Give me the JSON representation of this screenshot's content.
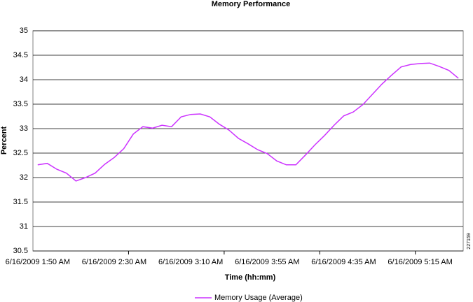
{
  "chart_data": {
    "type": "line",
    "title": "Memory Performance",
    "x_label": "Time (hh:mm)",
    "y_label": "Percent",
    "annotation": "227159",
    "categories": [
      "6/16/2009 1:50 AM",
      null,
      null,
      null,
      null,
      null,
      null,
      null,
      "6/16/2009 2:30 AM",
      null,
      null,
      null,
      null,
      null,
      null,
      null,
      "6/16/2009 3:10 AM",
      null,
      null,
      null,
      null,
      null,
      null,
      null,
      "6/16/2009 3:55 AM",
      null,
      null,
      null,
      null,
      null,
      null,
      null,
      "6/16/2009 4:35 AM",
      null,
      null,
      null,
      null,
      null,
      null,
      null,
      "6/16/2009 5:15 AM",
      null,
      null,
      null,
      null
    ],
    "series": [
      {
        "name": "Memory Usage (Average)",
        "color": "#cc33ff",
        "values": [
          32.26,
          32.29,
          32.17,
          32.09,
          31.93,
          32.0,
          32.09,
          32.27,
          32.41,
          32.59,
          32.89,
          33.04,
          33.01,
          33.07,
          33.04,
          33.24,
          33.29,
          33.3,
          33.24,
          33.09,
          32.97,
          32.8,
          32.69,
          32.57,
          32.49,
          32.34,
          32.26,
          32.26,
          32.46,
          32.67,
          32.86,
          33.07,
          33.26,
          33.34,
          33.49,
          33.7,
          33.91,
          34.09,
          34.26,
          34.31,
          34.33,
          34.34,
          34.27,
          34.19,
          34.03
        ]
      }
    ],
    "ylim": [
      30.5,
      35
    ],
    "yticks": [
      30.5,
      31,
      31.5,
      32,
      32.5,
      33,
      33.5,
      34,
      34.5,
      35
    ],
    "grid": true,
    "legend": "bottom"
  }
}
